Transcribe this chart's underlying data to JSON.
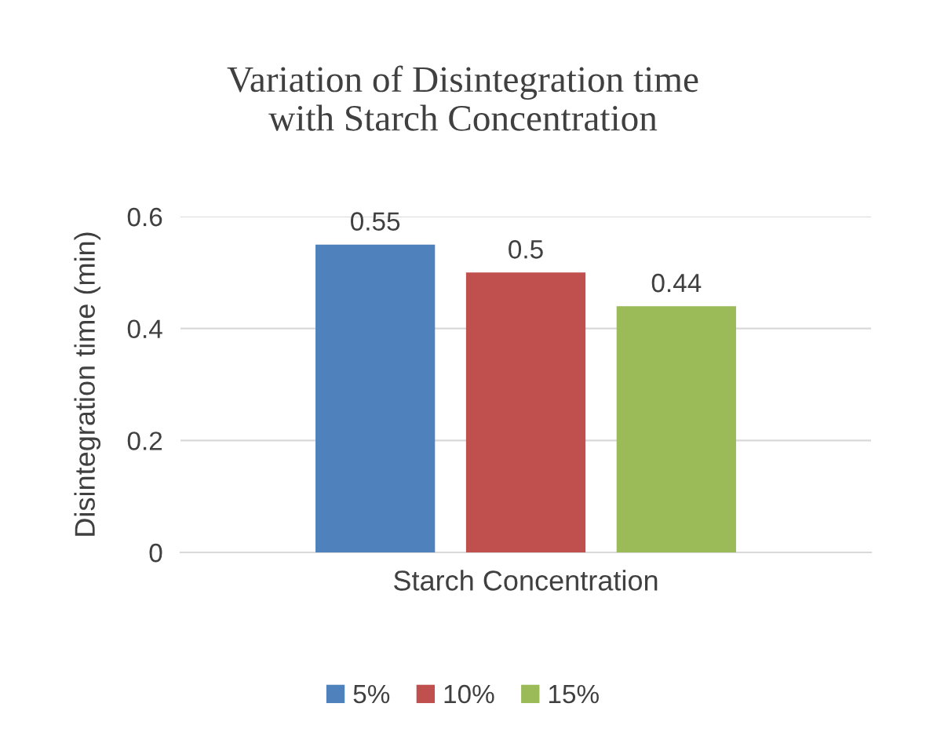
{
  "chart_data": {
    "type": "bar",
    "title": "Variation of Disintegration time\nwith Starch Concentration",
    "ylabel": "Disintegration time (min)",
    "categories": [
      "Starch Concentration"
    ],
    "series": [
      {
        "name": "5%",
        "color": "#4f81bd",
        "values": [
          0.55
        ]
      },
      {
        "name": "10%",
        "color": "#c0504d",
        "values": [
          0.5
        ]
      },
      {
        "name": "15%",
        "color": "#9bbb59",
        "values": [
          0.44
        ]
      }
    ],
    "ylim": [
      0,
      0.6
    ],
    "yticks": [
      0,
      0.2,
      0.4,
      0.6
    ],
    "grid": "y",
    "legend": "bottom",
    "data_labels": true
  }
}
